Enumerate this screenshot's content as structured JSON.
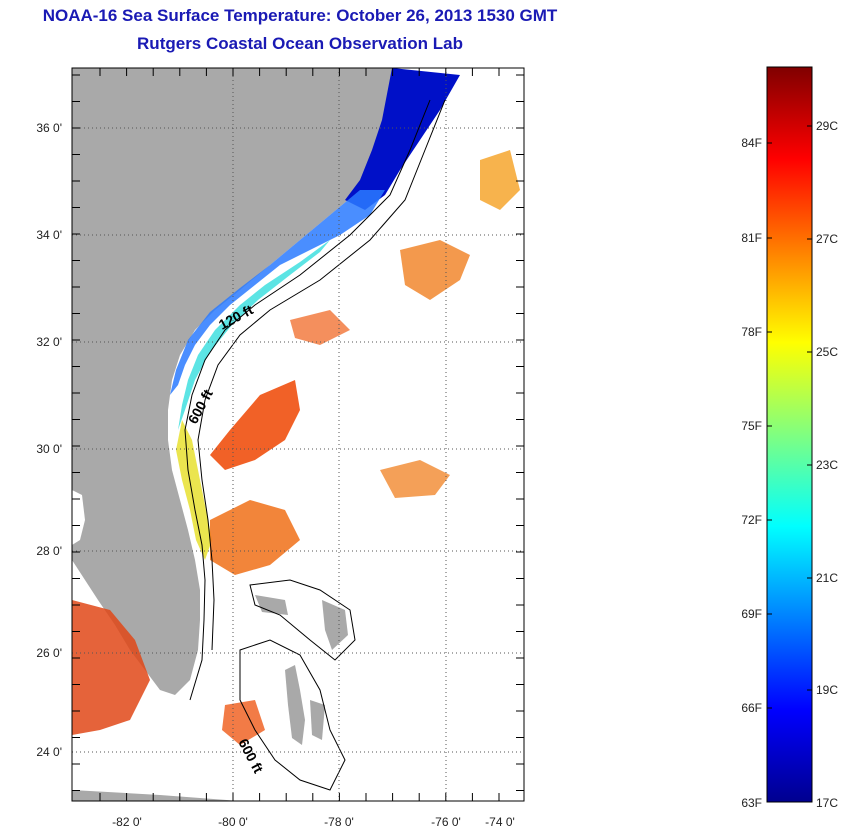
{
  "title": {
    "line1": "NOAA-16 Sea Surface Temperature:  October 26, 2013 1530 GMT",
    "line2": "Rutgers Coastal Ocean Observation Lab"
  },
  "map": {
    "lon_labels": [
      "-82 0'",
      "-80 0'",
      "-78 0'",
      "-76 0'",
      "-74 0'"
    ],
    "lat_labels": [
      "36 0'",
      "34 0'",
      "32 0'",
      "30 0'",
      "28 0'",
      "26 0'",
      "24 0'"
    ],
    "contour_labels": [
      "120 ft",
      "600 ft",
      "600 ft"
    ],
    "colors": {
      "land": "#a9a9a9",
      "ocean_nodata": "#ffffff",
      "grid": "#555555"
    }
  },
  "colorbar": {
    "f_labels": [
      "84F",
      "81F",
      "78F",
      "75F",
      "72F",
      "69F",
      "66F",
      "63F"
    ],
    "c_labels": [
      "29C",
      "27C",
      "25C",
      "23C",
      "21C",
      "19C",
      "17C"
    ],
    "colors": [
      "#00008f",
      "#0000ff",
      "#0080ff",
      "#00ffff",
      "#80ff80",
      "#ffff00",
      "#ff8000",
      "#ff0000",
      "#800000"
    ]
  }
}
